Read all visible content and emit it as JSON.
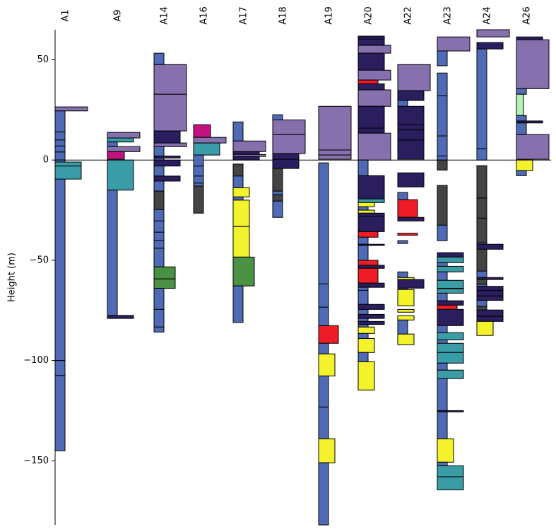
{
  "chart_data": {
    "type": "strip-log",
    "y_label": "Height (m)",
    "ylim": [
      -182,
      65
    ],
    "yticks": [
      {
        "value": 50,
        "label": "50"
      },
      {
        "value": 0,
        "label": "0"
      },
      {
        "value": -50,
        "label": "−50"
      },
      {
        "value": -100,
        "label": "−100"
      },
      {
        "value": -150,
        "label": "−150"
      }
    ],
    "reference_line": 0,
    "columns": [
      {
        "name": "A1",
        "layers": [
          [
            26.5,
            24.5,
            "#8670ad"
          ],
          [
            24.5,
            14,
            "#4f6bb6"
          ],
          [
            14,
            10,
            "#4f6bb6"
          ],
          [
            10,
            7,
            "#4f6bb6"
          ],
          [
            7,
            4,
            "#4f6bb6"
          ],
          [
            4,
            0,
            "#4f6bb6"
          ],
          [
            0,
            -100,
            "#4f6bb6"
          ],
          [
            -100,
            -107.5,
            "#4f6bb6"
          ],
          [
            -107.5,
            -145,
            "#4f6bb6"
          ],
          [
            -1,
            -3,
            "#3a9ca6"
          ],
          [
            -3,
            -9.5,
            "#3a9ca6"
          ]
        ]
      },
      {
        "name": "A9",
        "layers": [
          [
            13.8,
            11,
            "#8670ad"
          ],
          [
            11,
            9,
            "#3a9ca6"
          ],
          [
            9,
            6.7,
            "#4f6bb6"
          ],
          [
            6.7,
            4.2,
            "#8670ad"
          ],
          [
            4.2,
            0.4,
            "#c2127e"
          ],
          [
            0,
            -15,
            "#3a9ca6"
          ],
          [
            -15,
            -77.5,
            "#4f6bb6"
          ],
          [
            -77.5,
            -79,
            "#2b1e5e"
          ]
        ]
      },
      {
        "name": "A14",
        "layers": [
          [
            53.3,
            47.6,
            "#4f6bb6"
          ],
          [
            47.6,
            32.8,
            "#8670ad"
          ],
          [
            32.8,
            14.5,
            "#8670ad"
          ],
          [
            14.5,
            8,
            "#2b1e5e"
          ],
          [
            8.5,
            6.7,
            "#8670ad"
          ],
          [
            6.7,
            2,
            "#4f6bb6"
          ],
          [
            2,
            1,
            "#2b1e5e"
          ],
          [
            1,
            0,
            "#4f6bb6"
          ],
          [
            0,
            -3,
            "#2b1e5e"
          ],
          [
            -3,
            -8,
            "#4f6bb6"
          ],
          [
            -8,
            -10.5,
            "#2b1e5e"
          ],
          [
            -10.5,
            -15.5,
            "#4f6bb6"
          ],
          [
            -15.5,
            -24.7,
            "#444444"
          ],
          [
            -24.7,
            -30.4,
            "#4f6bb6"
          ],
          [
            -30.4,
            -36,
            "#4f6bb6"
          ],
          [
            -36,
            -40,
            "#4f6bb6"
          ],
          [
            -40,
            -44,
            "#4f6bb6"
          ],
          [
            -44,
            -53.3,
            "#4f6bb6"
          ],
          [
            -53.3,
            -59.3,
            "#4a9143"
          ],
          [
            -59.3,
            -64,
            "#4a9143"
          ],
          [
            -64,
            -74.5,
            "#4f6bb6"
          ],
          [
            -74.5,
            -83.3,
            "#4f6bb6"
          ],
          [
            -83.3,
            -85.8,
            "#4f6bb6"
          ]
        ]
      },
      {
        "name": "A16",
        "layers": [
          [
            17.6,
            11.3,
            "#c2127e"
          ],
          [
            11.3,
            8.5,
            "#8670ad"
          ],
          [
            8.5,
            2.5,
            "#3a9ca6"
          ],
          [
            2.5,
            -3,
            "#4f6bb6"
          ],
          [
            -3,
            -8,
            "#4f6bb6"
          ],
          [
            -8,
            -11.5,
            "#4f6bb6"
          ],
          [
            -11.5,
            -13,
            "#4f6bb6"
          ],
          [
            -13,
            -26.5,
            "#444444"
          ]
        ]
      },
      {
        "name": "A17",
        "layers": [
          [
            19,
            9.5,
            "#4f6bb6"
          ],
          [
            9.5,
            4.2,
            "#8670ad"
          ],
          [
            4.2,
            2.8,
            "#2b1e5e"
          ],
          [
            2.8,
            1.8,
            "#8670ad"
          ],
          [
            1.8,
            0,
            "#2b1e5e"
          ],
          [
            -2,
            -8,
            "#444444"
          ],
          [
            -8,
            -13.8,
            "#4f6bb6"
          ],
          [
            -13.8,
            -18.4,
            "#f3f22b"
          ],
          [
            -18.4,
            -20,
            "#4f6bb6"
          ],
          [
            -20,
            -33.2,
            "#f3f22b"
          ],
          [
            -33.2,
            -48.4,
            "#f3f22b"
          ],
          [
            -48.4,
            -62.8,
            "#4a9143"
          ],
          [
            -62.8,
            -81,
            "#4f6bb6"
          ]
        ]
      },
      {
        "name": "A18",
        "layers": [
          [
            22.6,
            20,
            "#4f6bb6"
          ],
          [
            20,
            12.7,
            "#8670ad"
          ],
          [
            12.7,
            3.2,
            "#8670ad"
          ],
          [
            3.2,
            0.4,
            "#2b1e5e"
          ],
          [
            0.4,
            -4.2,
            "#2b1e5e"
          ],
          [
            -4.2,
            -15.5,
            "#444444"
          ],
          [
            -15.5,
            -17.3,
            "#4f6bb6"
          ],
          [
            -17.3,
            -20.5,
            "#444444"
          ],
          [
            -20.5,
            -28.6,
            "#4f6bb6"
          ]
        ]
      },
      {
        "name": "A19",
        "layers": [
          [
            26.8,
            5,
            "#8670ad"
          ],
          [
            5,
            2.5,
            "#8670ad"
          ],
          [
            2.5,
            0.4,
            "#8670ad"
          ],
          [
            -1.4,
            -61.8,
            "#4f6bb6"
          ],
          [
            -61.8,
            -73.4,
            "#4f6bb6"
          ],
          [
            -73.4,
            -82.6,
            "#4f6bb6"
          ],
          [
            -82.6,
            -91.4,
            "#ee1c27"
          ],
          [
            -91.4,
            -96.7,
            "#4f6bb6"
          ],
          [
            -96.7,
            -107.7,
            "#f3f22b"
          ],
          [
            -107.7,
            -123.2,
            "#4f6bb6"
          ],
          [
            -123.2,
            -139,
            "#4f6bb6"
          ],
          [
            -139,
            -151,
            "#f3f22b"
          ],
          [
            -151,
            -182,
            "#4f6bb6"
          ]
        ]
      },
      {
        "name": "A20",
        "layers": [
          [
            61.8,
            60.4,
            "#2b1e5e"
          ],
          [
            60.4,
            57.2,
            "#2b1e5e"
          ],
          [
            57.2,
            53.3,
            "#8670ad"
          ],
          [
            53.3,
            44.8,
            "#2b1e5e"
          ],
          [
            44.8,
            39.9,
            "#8670ad"
          ],
          [
            39.9,
            38,
            "#ee1c27"
          ],
          [
            38,
            35,
            "#2b1e5e"
          ],
          [
            35,
            26.8,
            "#8670ad"
          ],
          [
            26.8,
            15.9,
            "#2b1e5e"
          ],
          [
            15.9,
            13.4,
            "#2b1e5e"
          ],
          [
            13.4,
            0,
            "#8670ad"
          ],
          [
            0,
            -7.8,
            "#4f6bb6"
          ],
          [
            -7.8,
            -19.4,
            "#2b1e5e"
          ],
          [
            -19.4,
            -21.2,
            "#3a9ca6"
          ],
          [
            -21.2,
            -23.3,
            "#f3f22b"
          ],
          [
            -23.3,
            -25,
            "#4f6bb6"
          ],
          [
            -25,
            -26.5,
            "#f3f22b"
          ],
          [
            -26.5,
            -28,
            "#2b1e5e"
          ],
          [
            -28,
            -35.7,
            "#2b1e5e"
          ],
          [
            -35.7,
            -38.5,
            "#ee1c27"
          ],
          [
            -38.5,
            -42,
            "#4f6bb6"
          ],
          [
            -42,
            -42.6,
            "#2b1e5e"
          ],
          [
            -42.6,
            -50,
            "#4f6bb6"
          ],
          [
            -50,
            -52.5,
            "#ee1c27"
          ],
          [
            -52.5,
            -54,
            "#2b1e5e"
          ],
          [
            -54,
            -61.4,
            "#ee1c27"
          ],
          [
            -61.4,
            -63.5,
            "#2b1e5e"
          ],
          [
            -63.5,
            -65,
            "#4f6bb6"
          ],
          [
            -65,
            -72,
            "#4f6bb6"
          ],
          [
            -72,
            -74.5,
            "#2b1e5e"
          ],
          [
            -74.5,
            -77,
            "#4f6bb6"
          ],
          [
            -77,
            -79,
            "#2b1e5e"
          ],
          [
            -79,
            -80.5,
            "#4f6bb6"
          ],
          [
            -80.5,
            -82,
            "#2b1e5e"
          ],
          [
            -82,
            -83.3,
            "#4f6bb6"
          ],
          [
            -83.3,
            -86.5,
            "#f3f22b"
          ],
          [
            -86.5,
            -89,
            "#4f6bb6"
          ],
          [
            -89,
            -96,
            "#f3f22b"
          ],
          [
            -96,
            -100.6,
            "#4f6bb6"
          ],
          [
            -100.6,
            -114.7,
            "#f3f22b"
          ]
        ]
      },
      {
        "name": "A22",
        "layers": [
          [
            47.6,
            34.6,
            "#8670ad"
          ],
          [
            34.6,
            29.7,
            "#2b1e5e"
          ],
          [
            29.7,
            26.8,
            "#4f6bb6"
          ],
          [
            26.8,
            17.6,
            "#2b1e5e"
          ],
          [
            17.6,
            15,
            "#2b1e5e"
          ],
          [
            15,
            10,
            "#2b1e5e"
          ],
          [
            10,
            0.4,
            "#2b1e5e"
          ],
          [
            -6.4,
            -13.4,
            "#2b1e5e"
          ],
          [
            -16.2,
            -19.8,
            "#4f6bb6"
          ],
          [
            -19.8,
            -28.6,
            "#ee1c27"
          ],
          [
            -28.6,
            -30.4,
            "#2b1e5e"
          ],
          [
            -36.5,
            -37.5,
            "#ee1c27"
          ],
          [
            -40.2,
            -41.6,
            "#4f6bb6"
          ],
          [
            -55.8,
            -58.6,
            "#4f6bb6"
          ],
          [
            -58.6,
            -59.6,
            "#f3f22b"
          ],
          [
            -59.6,
            -63.9,
            "#2b1e5e"
          ],
          [
            -63.9,
            -64.6,
            "#4f6bb6"
          ],
          [
            -64.6,
            -72.7,
            "#f3f22b"
          ],
          [
            -74.5,
            -75.9,
            "#f3f22b"
          ],
          [
            -77.6,
            -79.8,
            "#f3f22b"
          ],
          [
            -79.8,
            -86.8,
            "#4f6bb6"
          ],
          [
            -86.8,
            -92.1,
            "#f3f22b"
          ]
        ]
      },
      {
        "name": "A23",
        "layers": [
          [
            61.4,
            54.4,
            "#8670ad"
          ],
          [
            54.4,
            47,
            "#4f6bb6"
          ],
          [
            43.4,
            32,
            "#4f6bb6"
          ],
          [
            32,
            12,
            "#4f6bb6"
          ],
          [
            12,
            2,
            "#4f6bb6"
          ],
          [
            2,
            0,
            "#4f6bb6"
          ],
          [
            0,
            -5,
            "#444444"
          ],
          [
            -12.7,
            -32.5,
            "#444444"
          ],
          [
            -32.5,
            -40.2,
            "#4f6bb6"
          ],
          [
            -46.2,
            -48.4,
            "#2b1e5e"
          ],
          [
            -48.4,
            -51.2,
            "#3a9ca6"
          ],
          [
            -51.2,
            -53,
            "#4f6bb6"
          ],
          [
            -53,
            -55.8,
            "#3a9ca6"
          ],
          [
            -55.8,
            -60,
            "#4f6bb6"
          ],
          [
            -60,
            -64,
            "#3a9ca6"
          ],
          [
            -64.2,
            -66.4,
            "#3a9ca6"
          ],
          [
            -66.4,
            -70.2,
            "#4f6bb6"
          ],
          [
            -70.2,
            -72.4,
            "#2b1e5e"
          ],
          [
            -72.4,
            -74.5,
            "#ee1c27"
          ],
          [
            -74.5,
            -82.6,
            "#2b1e5e"
          ],
          [
            -82.6,
            -86.1,
            "#4f6bb6"
          ],
          [
            -86.1,
            -89.7,
            "#3a9ca6"
          ],
          [
            -89.7,
            -91.4,
            "#4f6bb6"
          ],
          [
            -91.4,
            -96,
            "#3a9ca6"
          ],
          [
            -96,
            -101.3,
            "#3a9ca6"
          ],
          [
            -101.3,
            -104.8,
            "#4f6bb6"
          ],
          [
            -104.8,
            -109,
            "#3a9ca6"
          ],
          [
            -109,
            -125,
            "#4f6bb6"
          ],
          [
            -125,
            -125.6,
            "#2b1e5e"
          ],
          [
            -125.6,
            -139,
            "#4f6bb6"
          ],
          [
            -139,
            -150.7,
            "#f3f22b"
          ],
          [
            -150.7,
            -152.5,
            "#4f6bb6"
          ],
          [
            -152.5,
            -158,
            "#3a9ca6"
          ],
          [
            -158,
            -164.5,
            "#3a9ca6"
          ]
        ]
      },
      {
        "name": "A24",
        "layers": [
          [
            65,
            61.4,
            "#8670ad"
          ],
          [
            58.6,
            55.4,
            "#2b1e5e"
          ],
          [
            55.4,
            5.6,
            "#4f6bb6"
          ],
          [
            5.6,
            0,
            "#4f6bb6"
          ],
          [
            -2.8,
            -19,
            "#444444"
          ],
          [
            -19,
            -29,
            "#444444"
          ],
          [
            -29,
            -41.3,
            "#444444"
          ],
          [
            -41.3,
            -42,
            "#4f6bb6"
          ],
          [
            -42,
            -44.5,
            "#2b1e5e"
          ],
          [
            -44.5,
            -55.4,
            "#444444"
          ],
          [
            -55.4,
            -58.6,
            "#4f6bb6"
          ],
          [
            -58.6,
            -59.6,
            "#2b1e5e"
          ],
          [
            -59.6,
            -62,
            "#444444"
          ],
          [
            -62,
            -63,
            "#4f6bb6"
          ],
          [
            -63,
            -65,
            "#2b1e5e"
          ],
          [
            -65,
            -67.8,
            "#2b1e5e"
          ],
          [
            -67.8,
            -70,
            "#2b1e5e"
          ],
          [
            -70,
            -73,
            "#4f6bb6"
          ],
          [
            -73,
            -74.8,
            "#444444"
          ],
          [
            -74.8,
            -78,
            "#2b1e5e"
          ],
          [
            -78,
            -80.5,
            "#2b1e5e"
          ],
          [
            -80.5,
            -87.5,
            "#f3f22b"
          ]
        ]
      },
      {
        "name": "A26",
        "layers": [
          [
            61.4,
            60,
            "#2b1e5e"
          ],
          [
            60,
            35.6,
            "#8670ad"
          ],
          [
            35.6,
            32.8,
            "#4f6bb6"
          ],
          [
            32.8,
            22.2,
            "#b3f0b3"
          ],
          [
            22.2,
            19.5,
            "#4f6bb6"
          ],
          [
            19.5,
            18.5,
            "#2b1e5e"
          ],
          [
            18.5,
            12.7,
            "#4f6bb6"
          ],
          [
            12.7,
            0.4,
            "#8670ad"
          ],
          [
            0,
            -5.3,
            "#f3f22b"
          ],
          [
            -5.3,
            -7.8,
            "#4f6bb6"
          ]
        ]
      }
    ]
  }
}
